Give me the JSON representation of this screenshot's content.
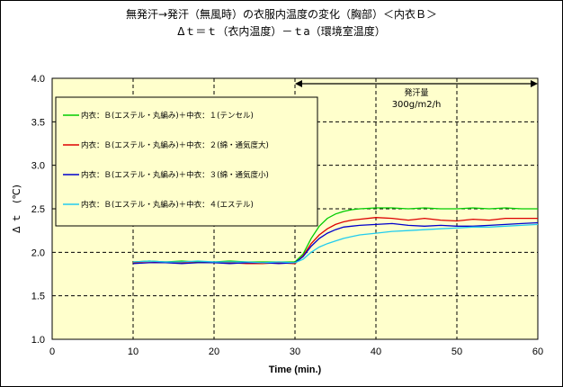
{
  "chart_data": {
    "type": "line",
    "title": "無発汗→発汗（無風時）の衣服内温度の変化（胸部）＜内衣Ｂ＞",
    "subtitle": "Δｔ＝ｔ（衣内温度）－ｔa（環境室温度）",
    "xlabel": "Time (min.)",
    "ylabel": "Δ ｔ　(℃)",
    "xlim": [
      0,
      60
    ],
    "ylim": [
      1.0,
      4.0
    ],
    "xticks": [
      "0",
      "10",
      "20",
      "30",
      "40",
      "50",
      "60"
    ],
    "yticks": [
      "1.0",
      "1.5",
      "2.0",
      "2.5",
      "3.0",
      "3.5",
      "4.0"
    ],
    "grid": true,
    "legend_position": "upper-left",
    "annotation": {
      "label": "発汗量",
      "value": "300g/m2/h",
      "x_start": 30,
      "x_end": 60
    },
    "series": [
      {
        "name": "内衣：Ｂ(エステル・丸編み)＋中衣：１(テンセル)",
        "color": "#00cc00",
        "x": [
          10,
          12,
          14,
          16,
          18,
          20,
          22,
          24,
          26,
          28,
          30,
          31,
          32,
          33,
          34,
          35,
          36,
          37,
          38,
          40,
          42,
          44,
          46,
          48,
          50,
          52,
          54,
          56,
          58,
          60
        ],
        "y": [
          1.89,
          1.9,
          1.89,
          1.9,
          1.89,
          1.89,
          1.9,
          1.89,
          1.89,
          1.89,
          1.89,
          1.98,
          2.16,
          2.3,
          2.39,
          2.44,
          2.47,
          2.49,
          2.5,
          2.51,
          2.51,
          2.5,
          2.51,
          2.5,
          2.5,
          2.51,
          2.5,
          2.51,
          2.5,
          2.5
        ]
      },
      {
        "name": "内衣：Ｂ(エステル・丸編み)＋中衣：２(綿・通気度大)",
        "color": "#dd0000",
        "x": [
          10,
          12,
          14,
          16,
          18,
          20,
          22,
          24,
          26,
          28,
          30,
          31,
          32,
          33,
          34,
          35,
          36,
          37,
          38,
          40,
          42,
          44,
          46,
          48,
          50,
          52,
          54,
          56,
          58,
          60
        ],
        "y": [
          1.88,
          1.88,
          1.89,
          1.88,
          1.88,
          1.88,
          1.88,
          1.87,
          1.87,
          1.88,
          1.87,
          1.96,
          2.1,
          2.2,
          2.27,
          2.32,
          2.35,
          2.37,
          2.38,
          2.4,
          2.39,
          2.37,
          2.39,
          2.37,
          2.36,
          2.38,
          2.37,
          2.39,
          2.39,
          2.39
        ]
      },
      {
        "name": "内衣：Ｂ(エステル・丸編み)＋中衣：３(綿・通気度小)",
        "color": "#0000cc",
        "x": [
          10,
          12,
          14,
          16,
          18,
          20,
          22,
          24,
          26,
          28,
          30,
          31,
          32,
          33,
          34,
          35,
          36,
          37,
          38,
          40,
          42,
          44,
          46,
          48,
          50,
          52,
          54,
          56,
          58,
          60
        ],
        "y": [
          1.87,
          1.88,
          1.88,
          1.87,
          1.88,
          1.88,
          1.87,
          1.88,
          1.88,
          1.87,
          1.88,
          1.95,
          2.07,
          2.16,
          2.22,
          2.26,
          2.29,
          2.3,
          2.31,
          2.32,
          2.33,
          2.31,
          2.3,
          2.31,
          2.3,
          2.3,
          2.31,
          2.32,
          2.33,
          2.34
        ]
      },
      {
        "name": "内衣：Ｂ(エステル・丸編み)＋中衣：４(エステル)",
        "color": "#22ccee",
        "x": [
          10,
          12,
          14,
          16,
          18,
          20,
          22,
          24,
          26,
          28,
          30,
          31,
          32,
          33,
          34,
          35,
          36,
          37,
          38,
          40,
          42,
          44,
          46,
          48,
          50,
          52,
          54,
          56,
          58,
          60
        ],
        "y": [
          1.89,
          1.9,
          1.89,
          1.89,
          1.9,
          1.89,
          1.89,
          1.89,
          1.88,
          1.89,
          1.88,
          1.92,
          2.0,
          2.06,
          2.1,
          2.13,
          2.16,
          2.18,
          2.2,
          2.22,
          2.24,
          2.25,
          2.26,
          2.27,
          2.28,
          2.29,
          2.29,
          2.3,
          2.31,
          2.32
        ]
      }
    ]
  }
}
